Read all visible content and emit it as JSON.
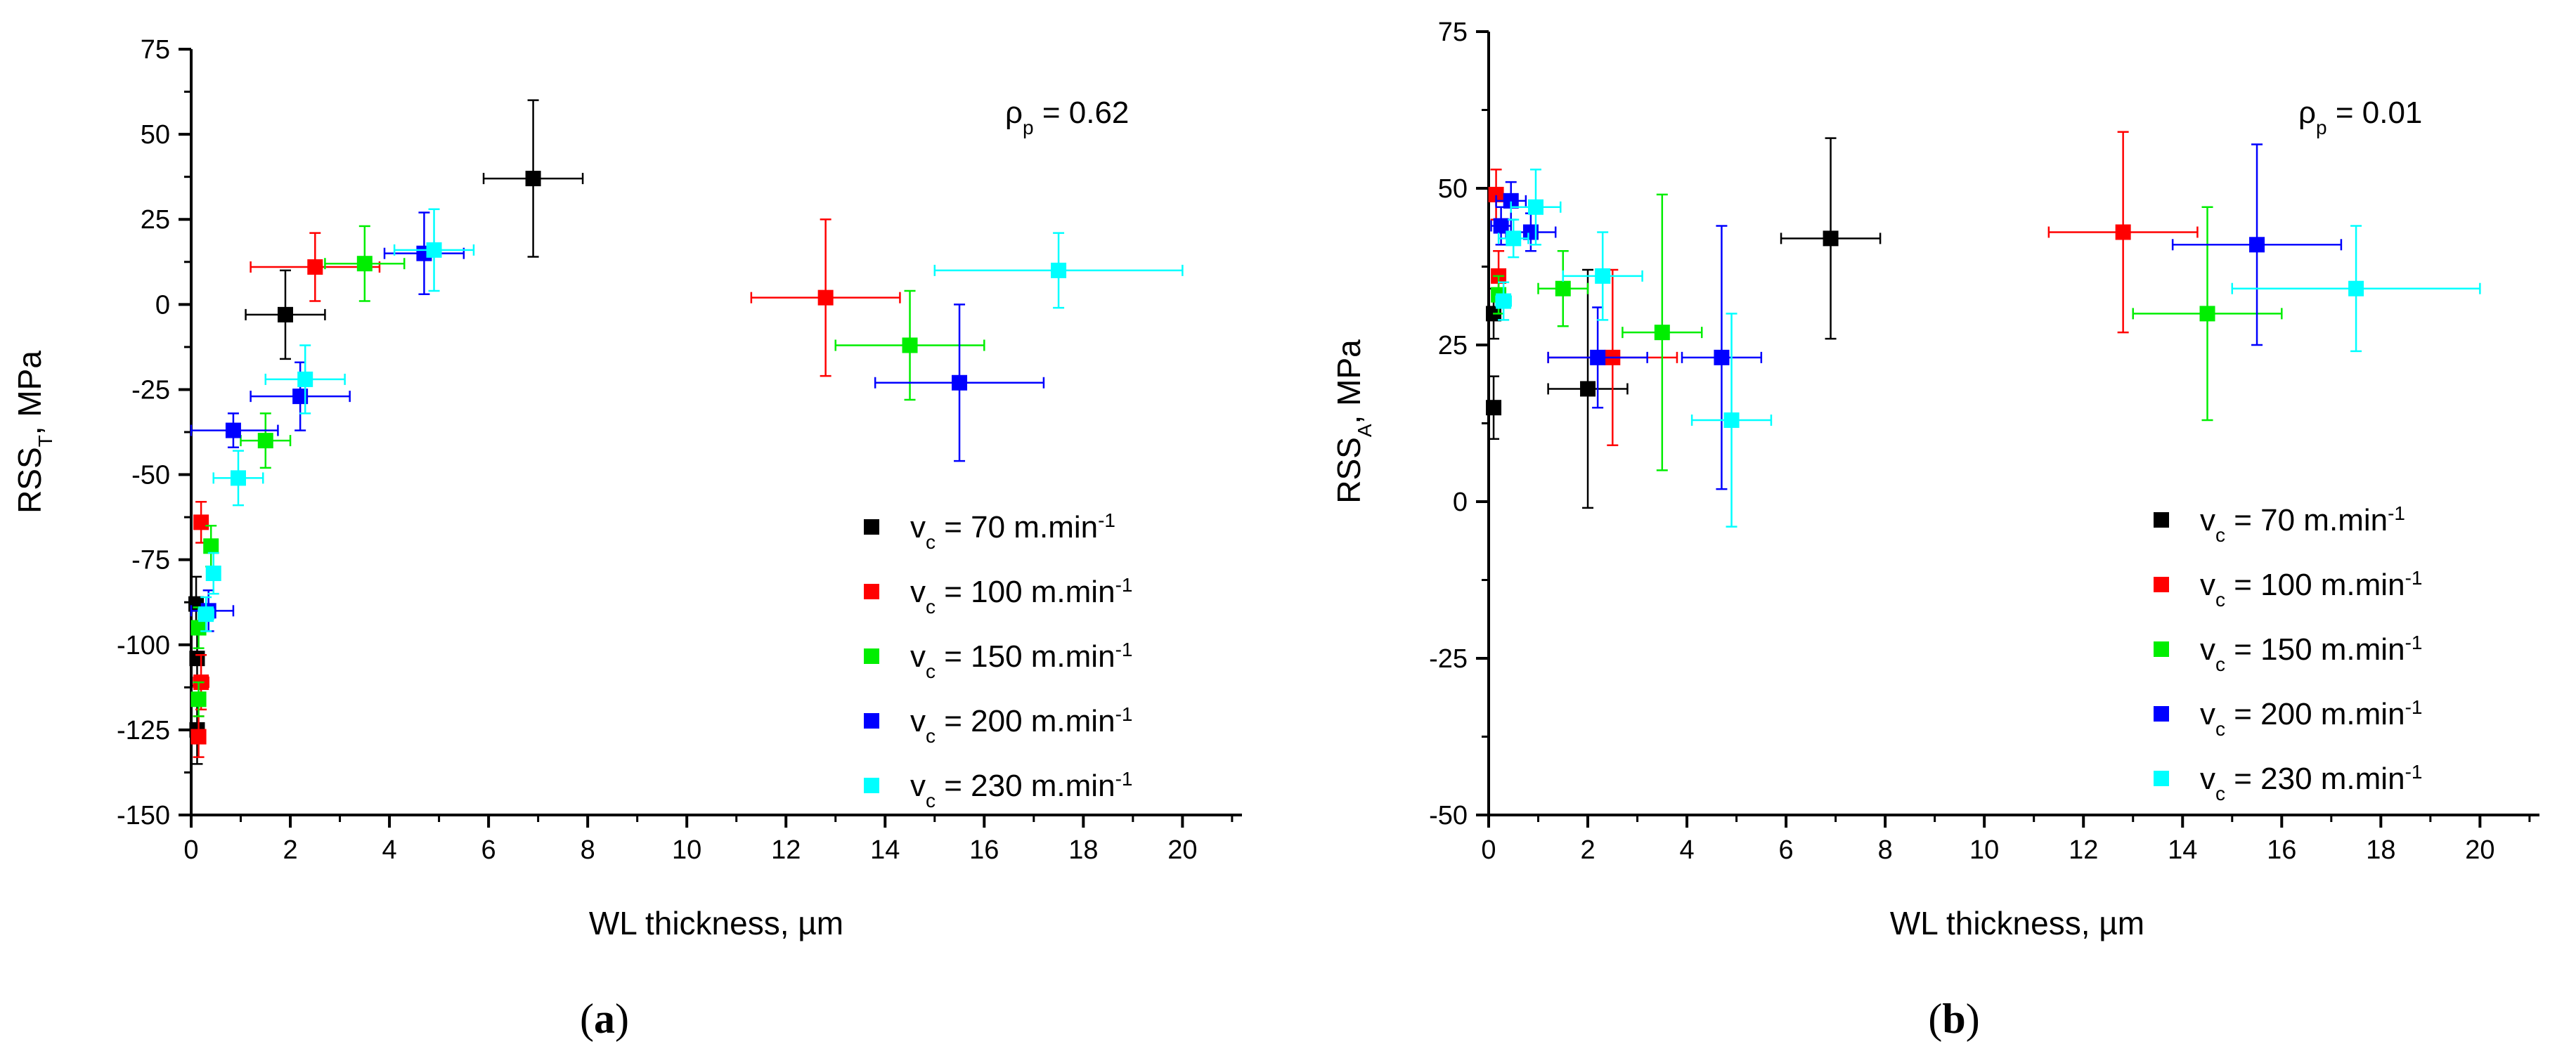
{
  "series_style": [
    {
      "name": "70",
      "color": "#000000"
    },
    {
      "name": "100",
      "color": "#ff0000"
    },
    {
      "name": "150",
      "color": "#00ee00"
    },
    {
      "name": "200",
      "color": "#0000ff"
    },
    {
      "name": "230",
      "color": "#00ffff"
    }
  ],
  "legend_prefix": "v",
  "legend_sub": "c",
  "legend_mid": " = ",
  "legend_unit": " m.min",
  "legend_sup": "-1",
  "chart_data": [
    {
      "type": "scatter",
      "panel_label": "(a)",
      "panel_letter": "a",
      "xlabel": "WL thickness, µm",
      "ylabel_main": "RSS",
      "ylabel_sub": "T",
      "ylabel_tail": ", MPa",
      "annotation_main": "ρ",
      "annotation_sub": "p",
      "annotation_tail": " = 0.62",
      "xlim": [
        0,
        21.2
      ],
      "ylim": [
        -150,
        75
      ],
      "xticks": [
        0,
        2,
        4,
        6,
        8,
        10,
        12,
        14,
        16,
        18,
        20
      ],
      "yticks": [
        -150,
        -125,
        -100,
        -75,
        -50,
        -25,
        0,
        25,
        50,
        75
      ],
      "series": [
        {
          "name": "vc = 70 m.min-1",
          "points": [
            {
              "x": 6.9,
              "y": 37,
              "xerr": 1.0,
              "yerr": 23
            },
            {
              "x": 1.9,
              "y": -3,
              "xerr": 0.8,
              "yerr": 13
            },
            {
              "x": 0.1,
              "y": -88,
              "xerr": 0.05,
              "yerr": 8
            },
            {
              "x": 0.12,
              "y": -104,
              "xerr": 0.05,
              "yerr": 8
            },
            {
              "x": 0.12,
              "y": -125,
              "xerr": 0.05,
              "yerr": 10
            }
          ]
        },
        {
          "name": "vc = 100 m.min-1",
          "points": [
            {
              "x": 12.8,
              "y": 2,
              "xerr": 1.5,
              "yerr": 23
            },
            {
              "x": 2.5,
              "y": 11,
              "xerr": 1.3,
              "yerr": 10
            },
            {
              "x": 0.2,
              "y": -64,
              "xerr": 0.1,
              "yerr": 6
            },
            {
              "x": 0.2,
              "y": -111,
              "xerr": 0.15,
              "yerr": 8
            },
            {
              "x": 0.15,
              "y": -127,
              "xerr": 0.1,
              "yerr": 6
            }
          ]
        },
        {
          "name": "vc = 150 m.min-1",
          "points": [
            {
              "x": 14.5,
              "y": -12,
              "xerr": 1.5,
              "yerr": 16
            },
            {
              "x": 3.5,
              "y": 12,
              "xerr": 0.8,
              "yerr": 11
            },
            {
              "x": 1.5,
              "y": -40,
              "xerr": 0.5,
              "yerr": 8
            },
            {
              "x": 0.4,
              "y": -71,
              "xerr": 0.1,
              "yerr": 6
            },
            {
              "x": 0.15,
              "y": -95,
              "xerr": 0.05,
              "yerr": 6
            },
            {
              "x": 0.15,
              "y": -116,
              "xerr": 0.05,
              "yerr": 5
            }
          ]
        },
        {
          "name": "vc = 200 m.min-1",
          "points": [
            {
              "x": 15.5,
              "y": -23,
              "xerr": 1.7,
              "yerr": 23
            },
            {
              "x": 4.7,
              "y": 15,
              "xerr": 0.8,
              "yerr": 12
            },
            {
              "x": 2.2,
              "y": -27,
              "xerr": 1.0,
              "yerr": 10
            },
            {
              "x": 0.85,
              "y": -37,
              "xerr": 0.9,
              "yerr": 5
            },
            {
              "x": 0.35,
              "y": -90,
              "xerr": 0.5,
              "yerr": 6
            }
          ]
        },
        {
          "name": "vc = 230 m.min-1",
          "points": [
            {
              "x": 17.5,
              "y": 10,
              "xerr": 2.5,
              "yerr": 11
            },
            {
              "x": 4.9,
              "y": 16,
              "xerr": 0.8,
              "yerr": 12
            },
            {
              "x": 2.3,
              "y": -22,
              "xerr": 0.8,
              "yerr": 10
            },
            {
              "x": 0.95,
              "y": -51,
              "xerr": 0.5,
              "yerr": 8
            },
            {
              "x": 0.45,
              "y": -79,
              "xerr": 0.1,
              "yerr": 6
            },
            {
              "x": 0.3,
              "y": -91,
              "xerr": 0.15,
              "yerr": 5
            }
          ]
        }
      ]
    },
    {
      "type": "scatter",
      "panel_label": "(b)",
      "panel_letter": "b",
      "xlabel": "WL thickness, µm",
      "ylabel_main": "RSS",
      "ylabel_sub": "A",
      "ylabel_tail": ", MPa",
      "annotation_main": "ρ",
      "annotation_sub": "p",
      "annotation_tail": " = 0.01",
      "xlim": [
        0,
        21.2
      ],
      "ylim": [
        -50,
        75
      ],
      "xticks": [
        0,
        2,
        4,
        6,
        8,
        10,
        12,
        14,
        16,
        18,
        20
      ],
      "yticks": [
        -50,
        -25,
        0,
        25,
        50,
        75
      ],
      "series": [
        {
          "name": "vc = 70 m.min-1",
          "points": [
            {
              "x": 6.9,
              "y": 42,
              "xerr": 1.0,
              "yerr": 16
            },
            {
              "x": 2.0,
              "y": 18,
              "xerr": 0.8,
              "yerr": 19
            },
            {
              "x": 0.1,
              "y": 15,
              "xerr": 0.05,
              "yerr": 5
            },
            {
              "x": 0.1,
              "y": 30,
              "xerr": 0.05,
              "yerr": 4
            }
          ]
        },
        {
          "name": "vc = 100 m.min-1",
          "points": [
            {
              "x": 12.8,
              "y": 43,
              "xerr": 1.5,
              "yerr": 16
            },
            {
              "x": 2.5,
              "y": 23,
              "xerr": 1.3,
              "yerr": 14
            },
            {
              "x": 0.15,
              "y": 49,
              "xerr": 0.1,
              "yerr": 4
            },
            {
              "x": 0.2,
              "y": 36,
              "xerr": 0.1,
              "yerr": 4
            }
          ]
        },
        {
          "name": "vc = 150 m.min-1",
          "points": [
            {
              "x": 14.5,
              "y": 30,
              "xerr": 1.5,
              "yerr": 17
            },
            {
              "x": 3.5,
              "y": 27,
              "xerr": 0.8,
              "yerr": 22
            },
            {
              "x": 1.5,
              "y": 34,
              "xerr": 0.5,
              "yerr": 6
            },
            {
              "x": 0.2,
              "y": 33,
              "xerr": 0.1,
              "yerr": 3
            }
          ]
        },
        {
          "name": "vc = 200 m.min-1",
          "points": [
            {
              "x": 15.5,
              "y": 41,
              "xerr": 1.7,
              "yerr": 16
            },
            {
              "x": 4.7,
              "y": 23,
              "xerr": 0.8,
              "yerr": 21
            },
            {
              "x": 2.2,
              "y": 23,
              "xerr": 1.0,
              "yerr": 8
            },
            {
              "x": 0.85,
              "y": 43,
              "xerr": 0.5,
              "yerr": 3
            },
            {
              "x": 0.45,
              "y": 48,
              "xerr": 0.3,
              "yerr": 3
            },
            {
              "x": 0.25,
              "y": 44,
              "xerr": 0.2,
              "yerr": 3
            }
          ]
        },
        {
          "name": "vc = 230 m.min-1",
          "points": [
            {
              "x": 17.5,
              "y": 34,
              "xerr": 2.5,
              "yerr": 10
            },
            {
              "x": 4.9,
              "y": 13,
              "xerr": 0.8,
              "yerr": 17
            },
            {
              "x": 2.3,
              "y": 36,
              "xerr": 0.8,
              "yerr": 7
            },
            {
              "x": 0.95,
              "y": 47,
              "xerr": 0.5,
              "yerr": 6
            },
            {
              "x": 0.5,
              "y": 42,
              "xerr": 0.3,
              "yerr": 3
            },
            {
              "x": 0.3,
              "y": 32,
              "xerr": 0.15,
              "yerr": 3
            }
          ]
        }
      ]
    }
  ]
}
